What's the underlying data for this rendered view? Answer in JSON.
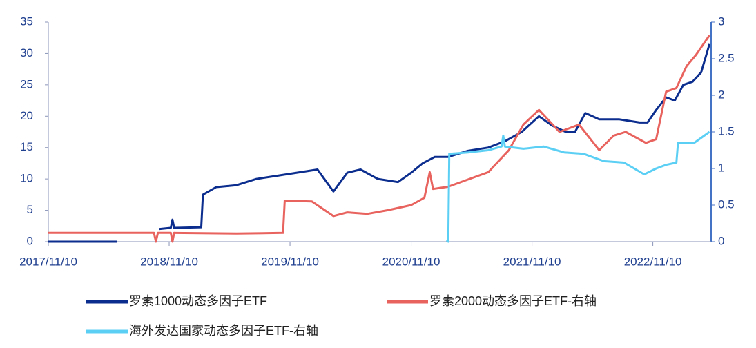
{
  "chart_data": {
    "type": "line",
    "xlim": [
      "2017/11/10",
      "2023/05/05"
    ],
    "xticks": [
      "2017/11/10",
      "2018/11/10",
      "2019/11/10",
      "2020/11/10",
      "2021/11/10",
      "2022/11/10"
    ],
    "ylim": [
      0,
      35
    ],
    "yticks": [
      0,
      5,
      10,
      15,
      20,
      25,
      30,
      35
    ],
    "y2lim": [
      0,
      3
    ],
    "y2ticks": [
      0,
      0.5,
      1,
      1.5,
      2,
      2.5,
      3
    ],
    "legend": "bottom",
    "series": [
      {
        "name": "罗素1000动态多因子ETF",
        "color": "#0b2d8e",
        "axis": "y",
        "x": [
          "2017/11/10",
          "2018/03/01",
          "2018/06/05",
          "2018/06/20",
          "2018/10/10",
          "2018/11/15",
          "2018/11/20",
          "2018/11/25",
          "2019/02/15",
          "2019/02/20",
          "2019/04/01",
          "2019/06/01",
          "2019/08/01",
          "2019/10/01",
          "2019/12/01",
          "2020/02/01",
          "2020/03/20",
          "2020/05/01",
          "2020/06/10",
          "2020/08/01",
          "2020/10/01",
          "2020/11/10",
          "2020/12/15",
          "2021/01/20",
          "2021/03/01",
          "2021/05/01",
          "2021/07/01",
          "2021/08/20",
          "2021/10/10",
          "2021/12/01",
          "2022/01/10",
          "2022/02/20",
          "2022/03/20",
          "2022/04/20",
          "2022/06/01",
          "2022/08/01",
          "2022/10/01",
          "2022/10/25",
          "2022/11/20",
          "2022/12/20",
          "2023/01/15",
          "2023/02/10",
          "2023/03/10",
          "2023/04/05",
          "2023/04/30"
        ],
        "values": [
          0,
          0,
          0,
          null,
          2,
          2.2,
          3.5,
          2.2,
          2.3,
          7.5,
          8.7,
          9,
          10,
          10.5,
          11,
          11.5,
          8,
          11,
          11.5,
          10,
          9.5,
          11,
          12.5,
          13.5,
          13.5,
          14.5,
          15,
          16,
          17.5,
          20,
          18.5,
          17.5,
          17.5,
          20.5,
          19.5,
          19.5,
          19,
          19,
          21,
          23,
          22.5,
          25,
          25.5,
          27,
          31.5
        ]
      },
      {
        "name": "罗素2000动态多因子ETF-右轴",
        "color": "#e8625e",
        "axis": "y2",
        "x": [
          "2017/11/10",
          "2018/04/01",
          "2018/09/25",
          "2018/10/01",
          "2018/10/07",
          "2018/11/15",
          "2018/11/20",
          "2018/11/25",
          "2019/06/01",
          "2019/10/20",
          "2019/10/25",
          "2020/01/15",
          "2020/03/20",
          "2020/05/01",
          "2020/07/01",
          "2020/09/01",
          "2020/11/10",
          "2020/12/20",
          "2021/01/05",
          "2021/01/15",
          "2021/03/01",
          "2021/05/01",
          "2021/07/01",
          "2021/09/01",
          "2021/10/15",
          "2021/12/01",
          "2022/02/01",
          "2022/04/01",
          "2022/06/01",
          "2022/07/15",
          "2022/08/20",
          "2022/10/20",
          "2022/11/20",
          "2022/12/20",
          "2023/01/20",
          "2023/02/20",
          "2023/03/20",
          "2023/04/30"
        ],
        "values": [
          0.12,
          0.12,
          0.12,
          0,
          0.12,
          0.12,
          0,
          0.12,
          0.11,
          0.12,
          0.56,
          0.55,
          0.35,
          0.4,
          0.38,
          0.43,
          0.5,
          0.6,
          0.95,
          0.72,
          0.75,
          0.85,
          0.95,
          1.25,
          1.6,
          1.8,
          1.5,
          1.6,
          1.25,
          1.45,
          1.5,
          1.35,
          1.4,
          2.05,
          2.1,
          2.4,
          2.55,
          2.82
        ]
      },
      {
        "name": "海外发达国家动态多因子ETF-右轴",
        "color": "#5ccff4",
        "axis": "y2",
        "x": [
          "2021/02/25",
          "2021/03/02",
          "2021/03/05",
          "2021/05/01",
          "2021/07/01",
          "2021/08/10",
          "2021/08/15",
          "2021/08/20",
          "2021/10/15",
          "2021/12/15",
          "2022/02/15",
          "2022/04/15",
          "2022/06/15",
          "2022/08/15",
          "2022/10/15",
          "2022/11/20",
          "2022/12/20",
          "2023/01/20",
          "2023/01/25",
          "2023/03/15",
          "2023/04/30"
        ],
        "values": [
          0.02,
          0,
          1.2,
          1.22,
          1.25,
          1.3,
          1.45,
          1.3,
          1.27,
          1.3,
          1.22,
          1.2,
          1.1,
          1.08,
          0.92,
          1.0,
          1.05,
          1.08,
          1.35,
          1.35,
          1.5
        ]
      }
    ]
  }
}
